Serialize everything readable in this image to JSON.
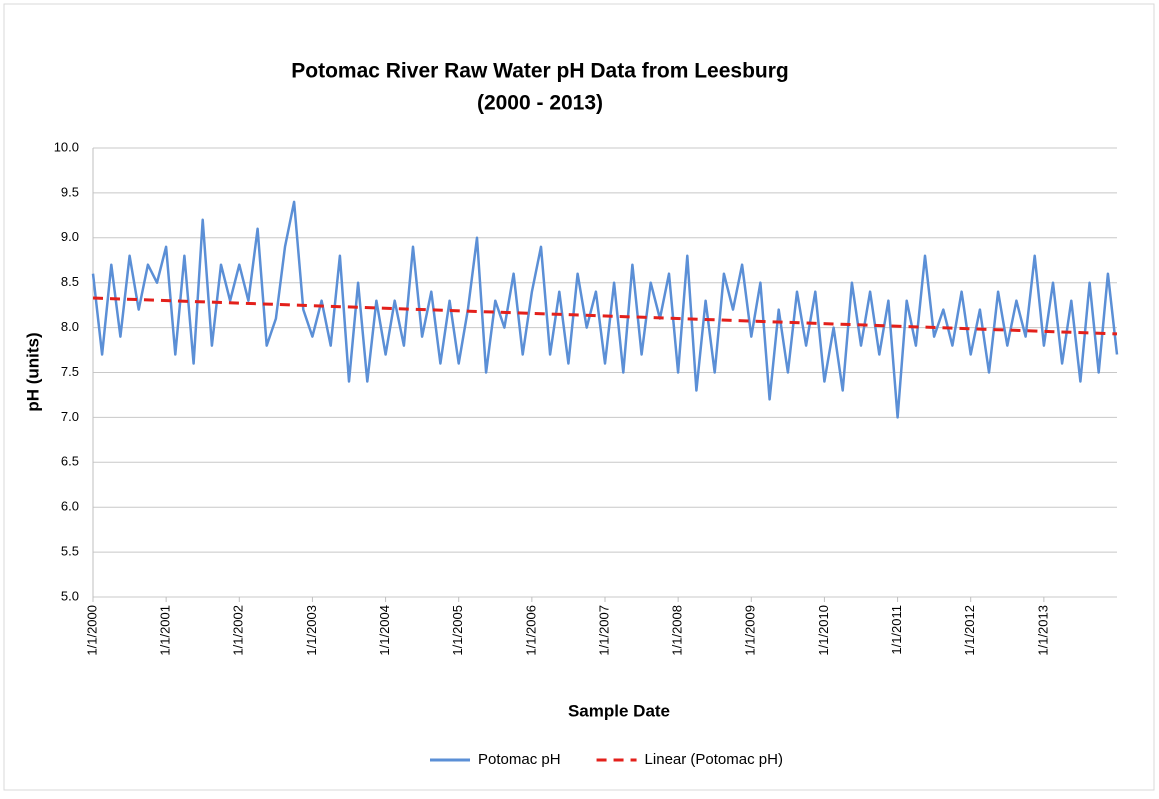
{
  "chart_data": {
    "type": "line",
    "title": [
      "Potomac River Raw Water pH Data from Leesburg",
      "(2000 - 2013)"
    ],
    "xlabel": "Sample Date",
    "ylabel": "pH (units)",
    "xlim": [
      2000,
      2014
    ],
    "ylim": [
      5,
      10
    ],
    "xticks": [
      {
        "value": 2000,
        "label": "1/1/2000"
      },
      {
        "value": 2001,
        "label": "1/1/2001"
      },
      {
        "value": 2002,
        "label": "1/1/2002"
      },
      {
        "value": 2003,
        "label": "1/1/2003"
      },
      {
        "value": 2004,
        "label": "1/1/2004"
      },
      {
        "value": 2005,
        "label": "1/1/2005"
      },
      {
        "value": 2006,
        "label": "1/1/2006"
      },
      {
        "value": 2007,
        "label": "1/1/2007"
      },
      {
        "value": 2008,
        "label": "1/1/2008"
      },
      {
        "value": 2009,
        "label": "1/1/2009"
      },
      {
        "value": 2010,
        "label": "1/1/2010"
      },
      {
        "value": 2011,
        "label": "1/1/2011"
      },
      {
        "value": 2012,
        "label": "1/1/2012"
      },
      {
        "value": 2013,
        "label": "1/1/2013"
      }
    ],
    "yticks": [
      {
        "value": 5,
        "label": "5.0"
      },
      5.5,
      {
        "value": 6,
        "label": "6.0"
      },
      6.5,
      {
        "value": 7,
        "label": "7.0"
      },
      7.5,
      {
        "value": 8,
        "label": "8.0"
      },
      8.5,
      {
        "value": 9,
        "label": "9.0"
      },
      9.5,
      {
        "value": 10,
        "label": "10.0"
      }
    ],
    "grid": true,
    "legend": "bottom",
    "series": [
      {
        "name": "Potomac pH",
        "color": "#5b8fd6",
        "dash": false,
        "x": [
          2000,
          2000.125,
          2000.25,
          2000.375,
          2000.5,
          2000.625,
          2000.75,
          2000.875,
          2001,
          2001.125,
          2001.25,
          2001.375,
          2001.5,
          2001.625,
          2001.75,
          2001.875,
          2002,
          2002.125,
          2002.25,
          2002.375,
          2002.5,
          2002.625,
          2002.75,
          2002.875,
          2003,
          2003.125,
          2003.25,
          2003.375,
          2003.5,
          2003.625,
          2003.75,
          2003.875,
          2004,
          2004.125,
          2004.25,
          2004.375,
          2004.5,
          2004.625,
          2004.75,
          2004.875,
          2005,
          2005.125,
          2005.25,
          2005.375,
          2005.5,
          2005.625,
          2005.75,
          2005.875,
          2006,
          2006.125,
          2006.25,
          2006.375,
          2006.5,
          2006.625,
          2006.75,
          2006.875,
          2007,
          2007.125,
          2007.25,
          2007.375,
          2007.5,
          2007.625,
          2007.75,
          2007.875,
          2008,
          2008.125,
          2008.25,
          2008.375,
          2008.5,
          2008.625,
          2008.75,
          2008.875,
          2009,
          2009.125,
          2009.25,
          2009.375,
          2009.5,
          2009.625,
          2009.75,
          2009.875,
          2010,
          2010.125,
          2010.25,
          2010.375,
          2010.5,
          2010.625,
          2010.75,
          2010.875,
          2011,
          2011.125,
          2011.25,
          2011.375,
          2011.5,
          2011.625,
          2011.75,
          2011.875,
          2012,
          2012.125,
          2012.25,
          2012.375,
          2012.5,
          2012.625,
          2012.75,
          2012.875,
          2013,
          2013.125,
          2013.25,
          2013.375,
          2013.5,
          2013.625,
          2013.75,
          2013.875,
          2014
        ],
        "values": [
          8.6,
          7.7,
          8.7,
          7.9,
          8.8,
          8.2,
          8.7,
          8.5,
          8.9,
          7.7,
          8.8,
          7.6,
          9.2,
          7.8,
          8.7,
          8.3,
          8.7,
          8.3,
          9.1,
          7.8,
          8.1,
          8.9,
          9.4,
          8.2,
          7.9,
          8.3,
          7.8,
          8.8,
          7.4,
          8.5,
          7.4,
          8.3,
          7.7,
          8.3,
          7.8,
          8.9,
          7.9,
          8.4,
          7.6,
          8.3,
          7.6,
          8.2,
          9.0,
          7.5,
          8.3,
          8.0,
          8.6,
          7.7,
          8.4,
          8.9,
          7.7,
          8.4,
          7.6,
          8.6,
          8.0,
          8.4,
          7.6,
          8.5,
          7.5,
          8.7,
          7.7,
          8.5,
          8.1,
          8.6,
          7.5,
          8.8,
          7.3,
          8.3,
          7.5,
          8.6,
          8.2,
          8.7,
          7.9,
          8.5,
          7.2,
          8.2,
          7.5,
          8.4,
          7.8,
          8.4,
          7.4,
          8.0,
          7.3,
          8.5,
          7.8,
          8.4,
          7.7,
          8.3,
          7.0,
          8.3,
          7.8,
          8.8,
          7.9,
          8.2,
          7.8,
          8.4,
          7.7,
          8.2,
          7.5,
          8.4,
          7.8,
          8.3,
          7.9,
          8.8,
          7.8,
          8.5,
          7.6,
          8.3,
          7.4,
          8.5,
          7.5,
          8.6,
          7.7
        ]
      },
      {
        "name": "Linear (Potomac pH)",
        "color": "#e3201b",
        "dash": true,
        "x": [
          2000,
          2014
        ],
        "values": [
          8.33,
          7.93
        ]
      }
    ]
  }
}
